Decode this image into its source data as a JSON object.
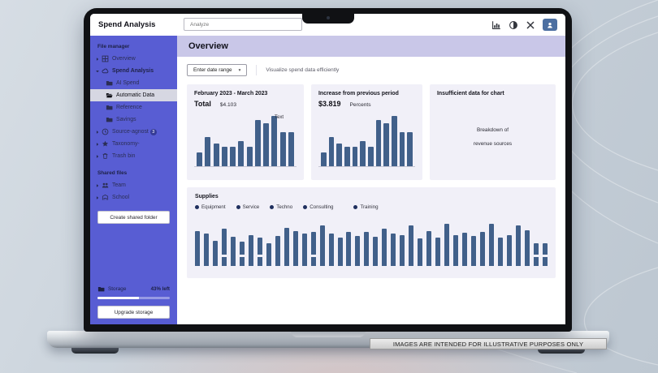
{
  "colors": {
    "sidebar": "#585dd3",
    "header_band": "#c9c7e8",
    "card_bg": "#f1f0f8",
    "bar": "#41608a",
    "legend_dot": "#1f2f5e",
    "accent_button": "#4c6fa1"
  },
  "device": {
    "disclaimer": "IMAGES ARE INTENDED FOR ILLUSTRATIVE PURPOSES ONLY"
  },
  "topbar": {
    "title": "Spend Analysis",
    "search_placeholder": "Analyze",
    "icons": [
      "chart-icon",
      "contrast-icon",
      "tools-icon"
    ],
    "active_button_icon": "user-icon"
  },
  "sidebar": {
    "file_manager_label": "File manager",
    "items": [
      {
        "label": "Overview",
        "icon": "grid-icon",
        "chevron": "right",
        "indent": 0
      },
      {
        "label": "Spend Analysis",
        "icon": "cloud-icon",
        "chevron": "down",
        "indent": 0,
        "bold": true
      },
      {
        "label": "AI Spend",
        "icon": "folder-icon",
        "chevron": "",
        "indent": 1
      },
      {
        "label": "Automatic Data",
        "icon": "folder-open-icon",
        "chevron": "",
        "indent": 1,
        "active": true
      },
      {
        "label": "Reference",
        "icon": "folder-icon",
        "chevron": "",
        "indent": 1
      },
      {
        "label": "Savings",
        "icon": "folder-icon",
        "chevron": "",
        "indent": 1
      },
      {
        "label": "Source-agnost",
        "icon": "clock-icon",
        "chevron": "right",
        "indent": 0,
        "badge": "3"
      },
      {
        "label": "Taxonomy-",
        "icon": "star-icon",
        "chevron": "right",
        "indent": 0
      },
      {
        "label": "Trash bin",
        "icon": "trash-icon",
        "chevron": "right",
        "indent": 0
      }
    ],
    "shared_files_label": "Shared files",
    "shared_items": [
      {
        "label": "Team",
        "icon": "users-icon",
        "chevron": "right"
      },
      {
        "label": "School",
        "icon": "building-icon",
        "chevron": "right"
      }
    ],
    "create_folder_button": "Create shared folder",
    "storage": {
      "icon": "folder-icon",
      "label": "Storage",
      "remaining": "43% left",
      "percent_filled": 57
    },
    "upgrade_button": "Upgrade storage"
  },
  "main": {
    "page_title": "Overview",
    "date_range_placeholder": "Enter date range",
    "subtitle": "Visualize spend data efficiently",
    "empty_card": {
      "title": "Insufficient data for chart",
      "line1": "Breakdown of",
      "line2": "revenue sources"
    }
  },
  "chart_data": [
    {
      "type": "bar",
      "title": "February 2023 - March 2023",
      "stat_label": "Total",
      "stat_value": "$4.103",
      "annotation": "Text",
      "ylim": [
        0,
        100
      ],
      "values": [
        28,
        58,
        45,
        38,
        38,
        50,
        38,
        92,
        85,
        100,
        68,
        68
      ],
      "axis_labels": false,
      "grid": false
    },
    {
      "type": "bar",
      "title": "Increase from previous period",
      "stat_value": "$3.819",
      "stat_label": "Percents",
      "ylim": [
        0,
        100
      ],
      "values": [
        28,
        58,
        45,
        38,
        38,
        50,
        38,
        92,
        85,
        100,
        68,
        68
      ],
      "axis_labels": false,
      "grid": false
    },
    {
      "type": "bar",
      "title": "Supplies",
      "legend": [
        "Equipment",
        "Service",
        "Techno",
        "Consulting",
        "Training"
      ],
      "legend_position": "top",
      "ylim": [
        0,
        100
      ],
      "bars": [
        {
          "h": 72
        },
        {
          "h": 66
        },
        {
          "h": 52
        },
        {
          "h": 76,
          "split": true
        },
        {
          "h": 60
        },
        {
          "h": 50,
          "split": true
        },
        {
          "h": 64
        },
        {
          "h": 58,
          "split": true
        },
        {
          "h": 46
        },
        {
          "h": 62
        },
        {
          "h": 78
        },
        {
          "h": 72
        },
        {
          "h": 66
        },
        {
          "h": 70,
          "split": true
        },
        {
          "h": 84
        },
        {
          "h": 66
        },
        {
          "h": 58
        },
        {
          "h": 70
        },
        {
          "h": 62
        },
        {
          "h": 70
        },
        {
          "h": 60
        },
        {
          "h": 76
        },
        {
          "h": 66
        },
        {
          "h": 64
        },
        {
          "h": 84
        },
        {
          "h": 56
        },
        {
          "h": 72
        },
        {
          "h": 58
        },
        {
          "h": 86
        },
        {
          "h": 64
        },
        {
          "h": 68
        },
        {
          "h": 62
        },
        {
          "h": 70
        },
        {
          "h": 86
        },
        {
          "h": 58
        },
        {
          "h": 64
        },
        {
          "h": 84
        },
        {
          "h": 74
        },
        {
          "h": 46,
          "split": true
        },
        {
          "h": 46,
          "split": true
        }
      ],
      "axis_labels": false,
      "grid": false
    }
  ]
}
